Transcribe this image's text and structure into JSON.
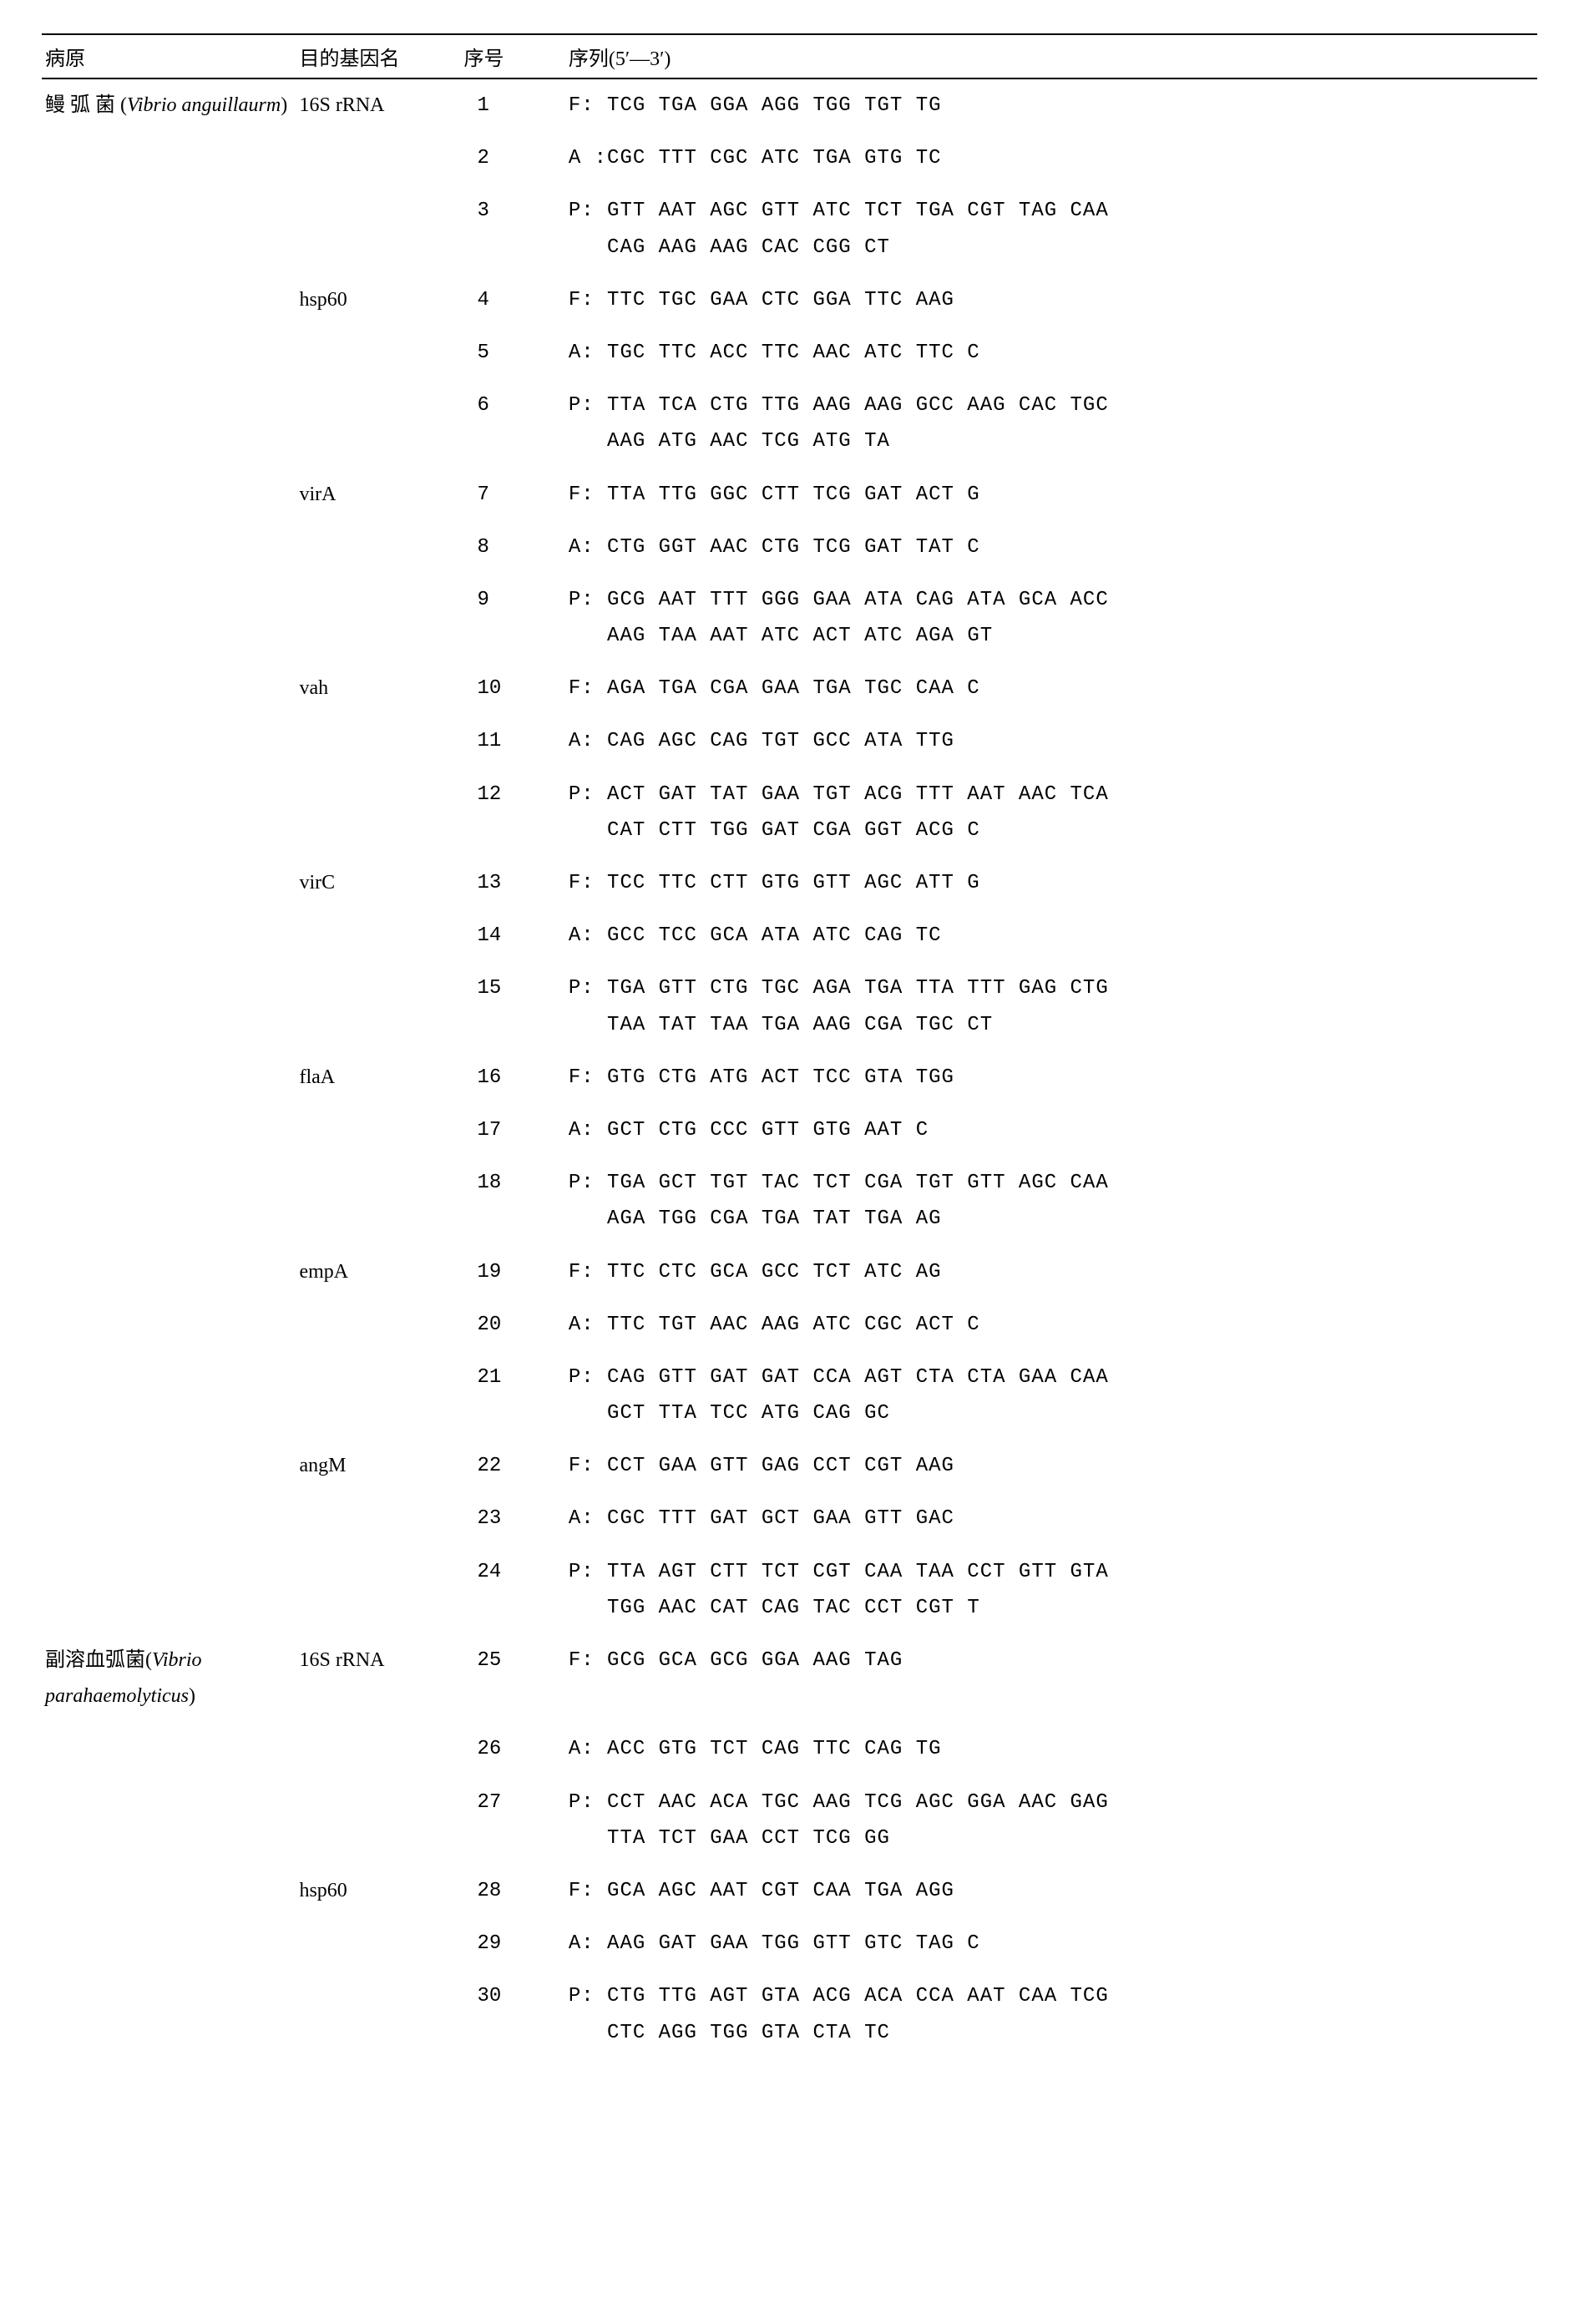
{
  "headers": {
    "pathogen": "病原",
    "gene": "目的基因名",
    "seqno": "序号",
    "sequence": "序列(5′—3′)"
  },
  "rows": [
    {
      "pathogen_cn": "鳗 弧 菌 (",
      "pathogen_latin": "Vibrio anguillaurm",
      "pathogen_close": ")",
      "gene": "16S rRNA",
      "no": "1",
      "seq": "F: TCG TGA GGA AGG TGG TGT TG"
    },
    {
      "pathogen_cn": "",
      "pathogen_latin": "",
      "pathogen_close": "",
      "gene": "",
      "no": "2",
      "seq": "A :CGC TTT CGC ATC TGA GTG TC"
    },
    {
      "gene": "",
      "no": "3",
      "seq": "P: GTT AAT AGC GTT ATC TCT TGA CGT TAG CAA\n   CAG AAG AAG CAC CGG CT"
    },
    {
      "gene": "hsp60",
      "no": "4",
      "seq": "F: TTC TGC GAA CTC GGA TTC AAG"
    },
    {
      "gene": "",
      "no": "5",
      "seq": "A: TGC TTC ACC TTC AAC ATC TTC C"
    },
    {
      "gene": "",
      "no": "6",
      "seq": "P: TTA TCA CTG TTG AAG AAG GCC AAG CAC TGC\n   AAG ATG AAC TCG ATG TA"
    },
    {
      "gene": "virA",
      "no": "7",
      "seq": "F: TTA TTG GGC CTT TCG GAT ACT G"
    },
    {
      "gene": "",
      "no": "8",
      "seq": "A: CTG GGT AAC CTG TCG GAT TAT C"
    },
    {
      "gene": "",
      "no": "9",
      "seq": "P: GCG AAT TTT GGG GAA ATA CAG ATA GCA ACC\n   AAG TAA AAT ATC ACT ATC AGA GT"
    },
    {
      "gene": "vah",
      "no": "10",
      "seq": "F: AGA TGA CGA GAA TGA TGC CAA C"
    },
    {
      "gene": "",
      "no": "11",
      "seq": "A: CAG AGC CAG TGT GCC ATA TTG"
    },
    {
      "gene": "",
      "no": "12",
      "seq": "P: ACT GAT TAT GAA TGT ACG TTT AAT AAC TCA\n   CAT CTT TGG GAT CGA GGT ACG C"
    },
    {
      "gene": "virC",
      "no": "13",
      "seq": "F: TCC TTC CTT GTG GTT AGC ATT G"
    },
    {
      "gene": "",
      "no": "14",
      "seq": "A: GCC TCC GCA ATA ATC CAG TC"
    },
    {
      "gene": "",
      "no": "15",
      "seq": "P: TGA GTT CTG TGC AGA TGA TTA TTT GAG CTG\n   TAA TAT TAA TGA AAG CGA TGC CT"
    },
    {
      "gene": "flaA",
      "no": "16",
      "seq": "F: GTG CTG ATG ACT TCC GTA TGG"
    },
    {
      "gene": "",
      "no": "17",
      "seq": "A: GCT CTG CCC GTT GTG AAT C"
    },
    {
      "gene": "",
      "no": "18",
      "seq": "P: TGA GCT TGT TAC TCT CGA TGT GTT AGC CAA\n   AGA TGG CGA TGA TAT TGA AG"
    },
    {
      "gene": "empA",
      "no": "19",
      "seq": "F: TTC CTC GCA GCC TCT ATC AG"
    },
    {
      "gene": "",
      "no": "20",
      "seq": "A: TTC TGT AAC AAG ATC CGC ACT C"
    },
    {
      "gene": "",
      "no": "21",
      "seq": "P: CAG GTT GAT GAT CCA AGT CTA CTA GAA CAA\n   GCT TTA TCC ATG CAG GC"
    },
    {
      "gene": "angM",
      "no": "22",
      "seq": "F: CCT GAA GTT GAG CCT CGT AAG"
    },
    {
      "gene": "",
      "no": "23",
      "seq": "A: CGC TTT GAT GCT GAA GTT GAC"
    },
    {
      "gene": "",
      "no": "24",
      "seq": "P: TTA AGT CTT TCT CGT CAA TAA CCT GTT GTA\n   TGG AAC CAT CAG TAC CCT CGT T"
    },
    {
      "pathogen_cn": "副溶血弧菌(",
      "pathogen_latin": "Vibrio parahaemolyticus",
      "pathogen_close": ")",
      "gene": "16S rRNA",
      "no": "25",
      "seq": "F: GCG GCA GCG GGA AAG TAG"
    },
    {
      "gene": "",
      "no": "26",
      "seq": "A: ACC GTG TCT CAG TTC CAG TG"
    },
    {
      "gene": "",
      "no": "27",
      "seq": "P: CCT AAC ACA TGC AAG TCG AGC GGA AAC GAG\n   TTA TCT GAA CCT TCG GG"
    },
    {
      "gene": "hsp60",
      "no": "28",
      "seq": "F: GCA AGC AAT CGT CAA TGA AGG"
    },
    {
      "gene": "",
      "no": "29",
      "seq": "A: AAG GAT GAA TGG GTT GTC TAG C"
    },
    {
      "gene": "",
      "no": "30",
      "seq": "P: CTG TTG AGT GTA ACG ACA CCA AAT CAA TCG\n   CTC AGG TGG GTA CTA TC"
    }
  ]
}
